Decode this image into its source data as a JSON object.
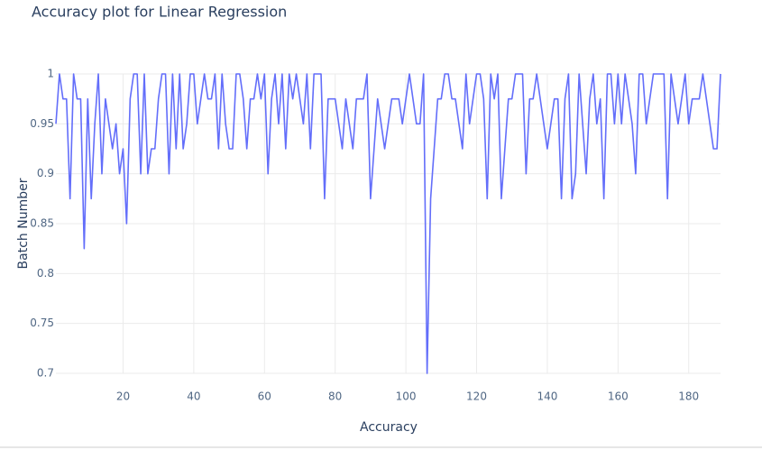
{
  "chart_data": {
    "type": "line",
    "title": "Accuracy plot for Linear Regression",
    "x_label": "Accuracy",
    "y_label": "Batch Number",
    "x": [
      1,
      2,
      3,
      4,
      5,
      6,
      7,
      8,
      9,
      10,
      11,
      12,
      13,
      14,
      15,
      16,
      17,
      18,
      19,
      20,
      21,
      22,
      23,
      24,
      25,
      26,
      27,
      28,
      29,
      30,
      31,
      32,
      33,
      34,
      35,
      36,
      37,
      38,
      39,
      40,
      41,
      42,
      43,
      44,
      45,
      46,
      47,
      48,
      49,
      50,
      51,
      52,
      53,
      54,
      55,
      56,
      57,
      58,
      59,
      60,
      61,
      62,
      63,
      64,
      65,
      66,
      67,
      68,
      69,
      70,
      71,
      72,
      73,
      74,
      75,
      76,
      77,
      78,
      79,
      80,
      81,
      82,
      83,
      84,
      85,
      86,
      87,
      88,
      89,
      90,
      91,
      92,
      93,
      94,
      95,
      96,
      97,
      98,
      99,
      100,
      101,
      102,
      103,
      104,
      105,
      106,
      107,
      108,
      109,
      110,
      111,
      112,
      113,
      114,
      115,
      116,
      117,
      118,
      119,
      120,
      121,
      122,
      123,
      124,
      125,
      126,
      127,
      128,
      129,
      130,
      131,
      132,
      133,
      134,
      135,
      136,
      137,
      138,
      139,
      140,
      141,
      142,
      143,
      144,
      145,
      146,
      147,
      148,
      149,
      150,
      151,
      152,
      153,
      154,
      155,
      156,
      157,
      158,
      159,
      160,
      161,
      162,
      163,
      164,
      165,
      166,
      167,
      168,
      169,
      170,
      171,
      172,
      173,
      174,
      175,
      176,
      177,
      178,
      179,
      180,
      181,
      182,
      183,
      184,
      185,
      186,
      187,
      188,
      189
    ],
    "series": [
      {
        "name": "Accuracy",
        "color": "#636efa",
        "values": [
          0.95,
          1,
          0.975,
          0.975,
          0.875,
          1,
          0.975,
          0.975,
          0.825,
          0.975,
          0.875,
          0.95,
          1,
          0.9,
          0.975,
          0.95,
          0.925,
          0.95,
          0.9,
          0.925,
          0.85,
          0.975,
          1,
          1,
          0.9,
          1,
          0.9,
          0.925,
          0.925,
          0.975,
          1,
          1,
          0.9,
          1,
          0.925,
          1,
          0.925,
          0.95,
          1,
          1,
          0.95,
          0.975,
          1,
          0.975,
          0.975,
          1,
          0.925,
          1,
          0.95,
          0.925,
          0.925,
          1,
          1,
          0.975,
          0.925,
          0.975,
          0.975,
          1,
          0.975,
          1,
          0.9,
          0.975,
          1,
          0.95,
          1,
          0.925,
          1,
          0.975,
          1,
          0.975,
          0.95,
          1,
          0.925,
          1,
          1,
          1,
          0.875,
          0.975,
          0.975,
          0.975,
          0.95,
          0.925,
          0.975,
          0.95,
          0.925,
          0.975,
          0.975,
          0.975,
          1,
          0.875,
          0.925,
          0.975,
          0.95,
          0.925,
          0.95,
          0.975,
          0.975,
          0.975,
          0.95,
          0.975,
          1,
          0.975,
          0.95,
          0.95,
          1,
          0.7,
          0.875,
          0.925,
          0.975,
          0.975,
          1,
          1,
          0.975,
          0.975,
          0.95,
          0.925,
          1,
          0.95,
          0.975,
          1,
          1,
          0.975,
          0.875,
          1,
          0.975,
          1,
          0.875,
          0.925,
          0.975,
          0.975,
          1,
          1,
          1,
          0.9,
          0.975,
          0.975,
          1,
          0.975,
          0.95,
          0.925,
          0.95,
          0.975,
          0.975,
          0.875,
          0.975,
          1,
          0.875,
          0.9,
          1,
          0.95,
          0.9,
          0.975,
          1,
          0.95,
          0.975,
          0.875,
          1,
          1,
          0.95,
          1,
          0.95,
          1,
          0.975,
          0.95,
          0.9,
          1,
          1,
          0.95,
          0.975,
          1,
          1,
          1,
          1,
          0.875,
          1,
          0.975,
          0.95,
          0.975,
          1,
          0.95,
          0.975,
          0.975,
          0.975,
          1,
          0.975,
          0.95,
          0.925,
          0.925,
          1
        ]
      }
    ],
    "xlim": [
      1,
      189
    ],
    "xticks": [
      20,
      40,
      60,
      80,
      100,
      120,
      140,
      160,
      180
    ],
    "ylim": [
      0.7,
      1
    ],
    "yticks": [
      0.7,
      0.75,
      0.8,
      0.85,
      0.9,
      0.95,
      1
    ],
    "grid": true,
    "show_legend": false
  }
}
